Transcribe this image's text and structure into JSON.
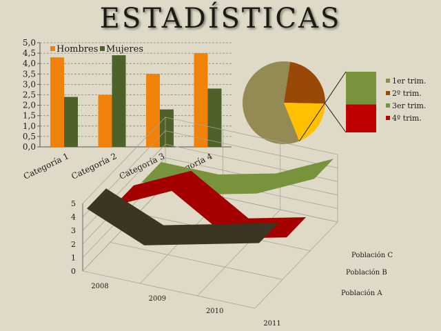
{
  "title": "ESTADÍSTICAS",
  "colors": {
    "hombres": "#f0820c",
    "mujeres": "#4e6128",
    "pie_1": "#948a54",
    "pie_2": "#984807",
    "pie_3": "#ffc000",
    "pie_3_bar": "#77933c",
    "pie_4": "#c00000",
    "pob_a": "#3b3623",
    "pob_b": "#a50000",
    "pob_c": "#77933c"
  },
  "chart_data": [
    {
      "type": "bar",
      "categories": [
        "Categoría 1",
        "Categoría 2",
        "Categoría 3",
        "Categoría 4"
      ],
      "series": [
        {
          "name": "Hombres",
          "values": [
            4.3,
            2.5,
            3.5,
            4.5
          ]
        },
        {
          "name": "Mujeres",
          "values": [
            2.4,
            4.4,
            1.8,
            2.8
          ]
        }
      ],
      "yticks": [
        "0,0",
        "0,5",
        "1,0",
        "1,5",
        "2,0",
        "2,5",
        "3,0",
        "3,5",
        "4,0",
        "4,5",
        "5,0"
      ],
      "ylim": [
        0,
        5
      ],
      "grid": true,
      "legend": "top-left"
    },
    {
      "type": "pie",
      "labels": [
        "1er trim.",
        "2º trim.",
        "3er trim.",
        "4º trim."
      ],
      "values": [
        8.2,
        3.2,
        1.4,
        1.2
      ],
      "split_into_bar": [
        "3er trim.",
        "4º trim."
      ],
      "legend": "right"
    },
    {
      "type": "line",
      "style": "3d-ribbon",
      "categories": [
        "2008",
        "2009",
        "2010",
        "2011"
      ],
      "series": [
        {
          "name": "Población A",
          "values": [
            4.3,
            2.5,
            3.5,
            4.5
          ]
        },
        {
          "name": "Población B",
          "values": [
            2.4,
            4.4,
            1.8,
            2.8
          ]
        },
        {
          "name": "Población C",
          "values": [
            2,
            2,
            3,
            5
          ]
        }
      ],
      "zticks": [
        "0",
        "1",
        "2",
        "3",
        "4",
        "5"
      ],
      "zlim": [
        0,
        5
      ]
    }
  ]
}
